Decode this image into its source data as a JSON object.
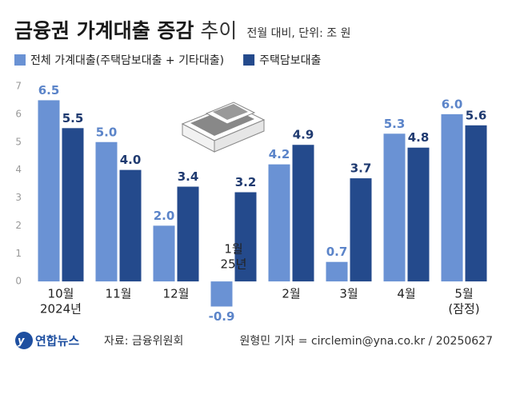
{
  "chart_data": {
    "type": "bar",
    "title": "금융권 가계대출 증감",
    "title_suffix": "추이",
    "subtitle": "전월 대비, 단위: 조 원",
    "categories": [
      [
        "10월",
        "2024년"
      ],
      [
        "11월"
      ],
      [
        "12월"
      ],
      [
        "1월",
        "25년"
      ],
      [
        "2월"
      ],
      [
        "3월"
      ],
      [
        "4월"
      ],
      [
        "5월",
        "(잠정)"
      ]
    ],
    "series": [
      {
        "name": "전체 가계대출(주택담보대출 + 기타대출)",
        "color": "#6a92d4",
        "label_color": "#5b84c9",
        "values": [
          6.5,
          5.0,
          2.0,
          -0.9,
          4.2,
          0.7,
          5.3,
          6.0
        ],
        "value_labels": [
          "6.5",
          "5.0",
          "2.0",
          "-0.9",
          "4.2",
          "0.7",
          "5.3",
          "6.0"
        ]
      },
      {
        "name": "주택담보대출",
        "color": "#244a8c",
        "label_color": "#1f3a70",
        "values": [
          5.5,
          4.0,
          3.4,
          3.2,
          4.9,
          3.7,
          4.8,
          5.6
        ],
        "value_labels": [
          "5.5",
          "4.0",
          "3.4",
          "3.2",
          "4.9",
          "3.7",
          "4.8",
          "5.6"
        ]
      }
    ],
    "ylim": [
      -1,
      7
    ],
    "yticks": [
      0,
      1,
      2,
      3,
      4,
      5,
      6,
      7
    ],
    "grid": false,
    "logo": "연합뉴스",
    "source": "자료: 금융위원회",
    "credit": "원형민 기자 = circlemin@yna.co.kr / 20250627"
  }
}
